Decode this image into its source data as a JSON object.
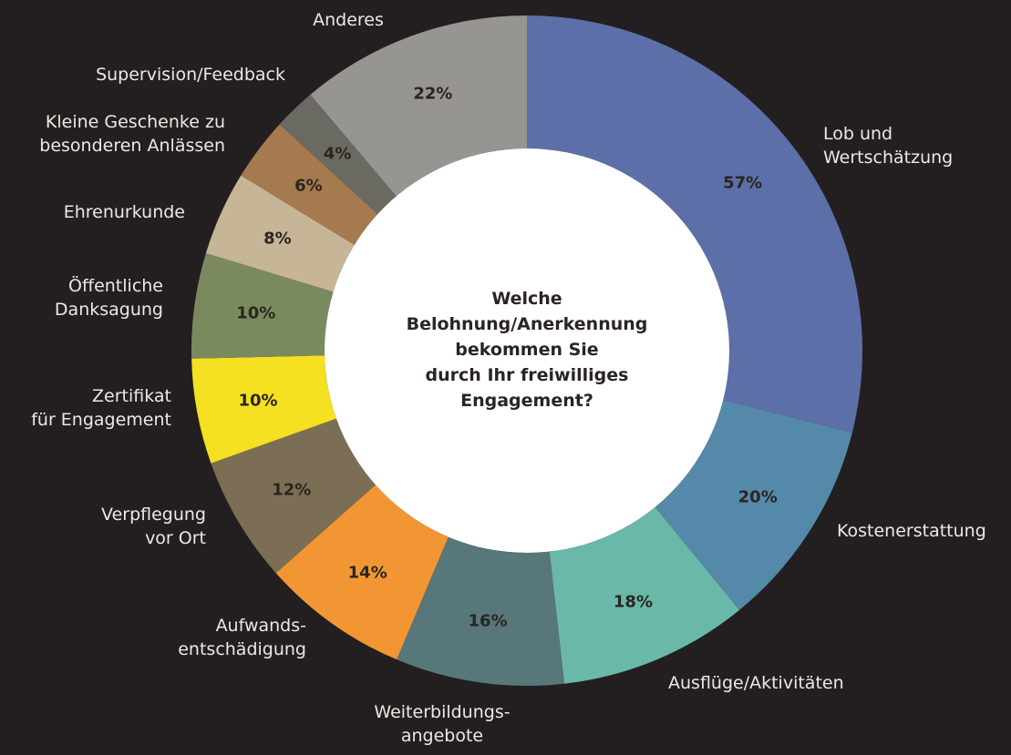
{
  "chart_data": {
    "type": "donut",
    "title": "Welche\nBelohnung/Anerkennung\nbekommen Sie\ndurch Ihr freiwilliges\nEngagement?",
    "categories": [
      "Lob und\nWertschätzung",
      "Kostenerstattung",
      "Ausflüge/Aktivitäten",
      "Weiterbildungs-\nangebote",
      "Aufwands-\nentschädigung",
      "Verpflegung\nvor Ort",
      "Zertifikat\nfür Engagement",
      "Öffentliche\nDanksagung",
      "Ehrenurkunde",
      "Kleine Geschenke zu\nbesonderen Anlässen",
      "Supervision/Feedback",
      "Anderes"
    ],
    "values": [
      57,
      20,
      18,
      16,
      14,
      12,
      10,
      10,
      8,
      6,
      4,
      22
    ],
    "value_labels": [
      "57%",
      "20%",
      "18%",
      "16%",
      "14%",
      "12%",
      "10%",
      "10%",
      "8%",
      "6%",
      "4%",
      "22%"
    ],
    "colors": [
      "#5c6fa8",
      "#5589a9",
      "#6ab8a8",
      "#57777a",
      "#f29633",
      "#7b6e54",
      "#f5e021",
      "#7a8a5e",
      "#c6b697",
      "#a67a4f",
      "#6b6a62",
      "#979591"
    ]
  }
}
